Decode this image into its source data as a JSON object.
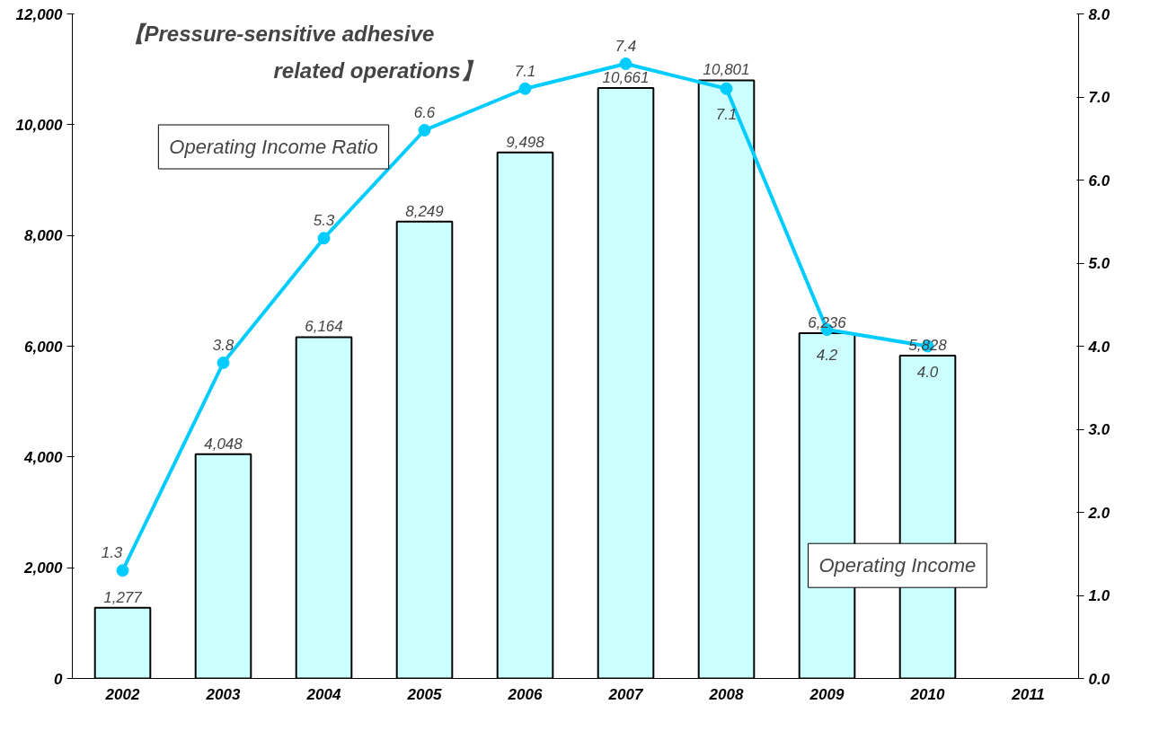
{
  "chart_data": {
    "type": "bar",
    "title": "【Pressure-sensitive adhesive related operations】",
    "categories": [
      "2002",
      "2003",
      "2004",
      "2005",
      "2006",
      "2007",
      "2008",
      "2009",
      "2010",
      "2011"
    ],
    "series": [
      {
        "name": "Operating Income",
        "color": "#ccffff",
        "values": [
          1277,
          4048,
          6164,
          8249,
          9498,
          10661,
          10801,
          6236,
          5828,
          null
        ],
        "value_labels": [
          "1,277",
          "4,048",
          "6,164",
          "8,249",
          "9,498",
          "10,661",
          "10,801",
          "6,236",
          "5,828",
          null
        ]
      },
      {
        "name": "Operating Income Ratio",
        "type": "line",
        "axis": "y2",
        "color": "#00ccff",
        "marker": "circle",
        "values": [
          1.3,
          3.8,
          5.3,
          6.6,
          7.1,
          7.4,
          7.1,
          4.2,
          4.0,
          null
        ],
        "value_labels": [
          "1.3",
          "3.8",
          "5.3",
          "6.6",
          "7.1",
          "7.4",
          "7.1",
          "4.2",
          "4.0",
          null
        ]
      }
    ],
    "ylim": [
      0,
      12000
    ],
    "yticks": [
      0,
      {
        "value": 2000,
        "label": "2,000"
      },
      {
        "value": 4000,
        "label": "4,000"
      },
      {
        "value": 6000,
        "label": "6,000"
      },
      {
        "value": 8000,
        "label": "8,000"
      },
      {
        "value": 10000,
        "label": "10,000"
      },
      {
        "value": 12000,
        "label": "12,000"
      }
    ],
    "y2lim": [
      0,
      8
    ],
    "y2ticks": [
      {
        "value": 0,
        "label": "0.0"
      },
      {
        "value": 1,
        "label": "1.0"
      },
      {
        "value": 2,
        "label": "2.0"
      },
      {
        "value": 3,
        "label": "3.0"
      },
      {
        "value": 4,
        "label": "4.0"
      },
      {
        "value": 5,
        "label": "5.0"
      },
      {
        "value": 6,
        "label": "6.0"
      },
      {
        "value": 7,
        "label": "7.0"
      },
      {
        "value": 8,
        "label": "8.0"
      }
    ],
    "grid": false,
    "legend": false
  }
}
